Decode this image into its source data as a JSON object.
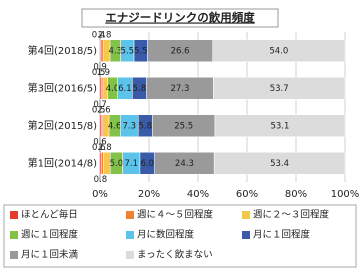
{
  "chart_data": {
    "type": "bar",
    "orientation": "horizontal",
    "stacked": true,
    "title": "エナジードリンクの飲用頻度",
    "categories": [
      "第4回(2018/5)",
      "第3回(2016/5)",
      "第2回(2015/8)",
      "第1回(2014/8)"
    ],
    "series": [
      {
        "name": "ほとんど毎日",
        "color": "#e33b2e",
        "values": [
          0.4,
          0.5,
          0.5,
          0.6
        ],
        "value_labels": [
          "0.4",
          "0.5",
          "0.5",
          "0.6"
        ]
      },
      {
        "name": "週に４～５回程度",
        "color": "#f0812f",
        "values": [
          0.9,
          0.7,
          0.6,
          0.8
        ],
        "value_labels": [
          "0.9",
          "0.7",
          "0.6",
          "0.8"
        ]
      },
      {
        "name": "週に２～３回程度",
        "color": "#f4c84a",
        "values": [
          2.8,
          1.9,
          2.6,
          2.8
        ],
        "value_labels": [
          "2.8",
          "1.9",
          "2.6",
          "2.8"
        ]
      },
      {
        "name": "週に１回程度",
        "color": "#82c24a",
        "values": [
          4.3,
          4.0,
          4.6,
          5.0
        ],
        "value_labels": [
          "4.3",
          "4.0",
          "4.6",
          "5.0"
        ]
      },
      {
        "name": "月に数回程度",
        "color": "#5cc3ea",
        "values": [
          5.5,
          6.1,
          7.3,
          7.1
        ],
        "value_labels": [
          "5.5",
          "6.1",
          "7.3",
          "7.1"
        ]
      },
      {
        "name": "月に１回程度",
        "color": "#3a5ca8",
        "values": [
          5.5,
          5.8,
          5.8,
          6.0
        ],
        "value_labels": [
          "5.5",
          "5.8",
          "5.8",
          "6.0"
        ]
      },
      {
        "name": "月に１回未満",
        "color": "#9a9a9a",
        "values": [
          26.6,
          27.3,
          25.5,
          24.3
        ],
        "value_labels": [
          "26.6",
          "27.3",
          "25.5",
          "24.3"
        ]
      },
      {
        "name": "まったく飲まない",
        "color": "#dcdcdc",
        "values": [
          54.0,
          53.7,
          53.1,
          53.4
        ],
        "value_labels": [
          "54.0",
          "53.7",
          "53.1",
          "53.4"
        ]
      }
    ],
    "xlim": [
      0,
      100
    ],
    "xticks": [
      {
        "value": 0,
        "label": "0%"
      },
      {
        "value": 20,
        "label": "20%"
      },
      {
        "value": 40,
        "label": "40%"
      },
      {
        "value": 60,
        "label": "60%"
      },
      {
        "value": 80,
        "label": "80%"
      },
      {
        "value": 100,
        "label": "100%"
      }
    ],
    "grid": true
  }
}
